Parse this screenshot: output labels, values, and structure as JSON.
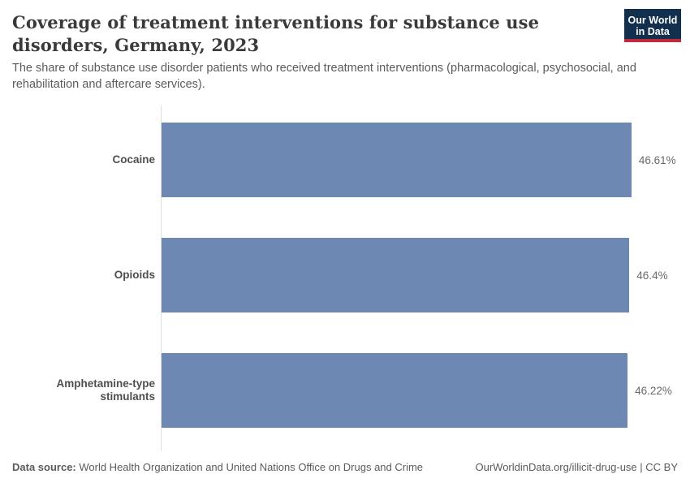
{
  "header": {
    "title": "Coverage of treatment interventions for substance use disorders, Germany, 2023",
    "subtitle": "The share of substance use disorder patients who received treatment interventions (pharmacological, psychosocial, and rehabilitation and aftercare services).",
    "logo": {
      "line1": "Our World",
      "line2": "in Data",
      "background_color": "#12304e",
      "accent_color": "#c0283c"
    }
  },
  "chart_data": {
    "type": "bar",
    "orientation": "horizontal",
    "categories": [
      "Cocaine",
      "Opioids",
      "Amphetamine-type stimulants"
    ],
    "values": [
      46.61,
      46.4,
      46.22
    ],
    "value_labels": [
      "46.61%",
      "46.4%",
      "46.22%"
    ],
    "unit": "%",
    "xlim": [
      0,
      50
    ],
    "grid": false,
    "legend": "none",
    "bar_color": "#6d88b2",
    "axis_line_color": "#dedede"
  },
  "footer": {
    "source_label": "Data source:",
    "source_text": " World Health Organization and United Nations Office on Drugs and Crime",
    "link_text": "OurWorldinData.org/illicit-drug-use | CC BY"
  }
}
